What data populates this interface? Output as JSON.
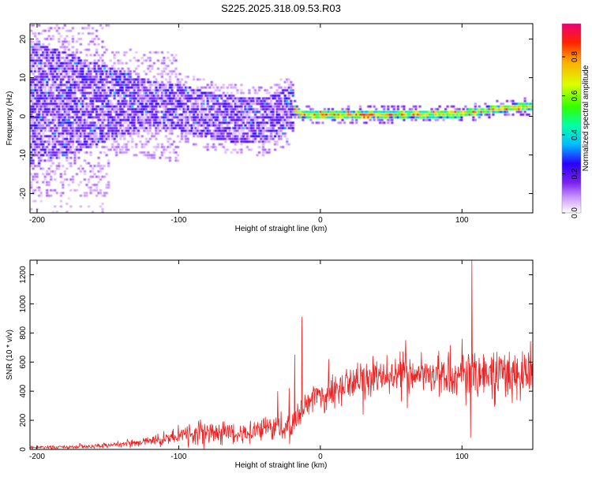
{
  "figure": {
    "title": "S225.2025.318.09.53.R03"
  },
  "chart_data": [
    {
      "type": "heatmap",
      "title": "S225.2025.318.09.53.R03",
      "xlabel": "Height of straight line (km)",
      "ylabel": "Frequency (Hz)",
      "xlim": [
        -205,
        150
      ],
      "ylim": [
        -25,
        24
      ],
      "xticks": [
        -200,
        -100,
        0,
        100
      ],
      "yticks": [
        -20,
        -10,
        0,
        10,
        20
      ],
      "colorbar": {
        "label": "Normalized spectral amplitude",
        "range": [
          0.0,
          0.97
        ],
        "ticks": [
          0.0,
          0.2,
          0.4,
          0.6,
          0.8
        ],
        "colormap": [
          "#ffffff",
          "#cc99ff",
          "#7a22ee",
          "#2a00ff",
          "#00bbff",
          "#00ffaa",
          "#33ff00",
          "#ddff00",
          "#ffaa00",
          "#ff2200",
          "#ee0077"
        ]
      },
      "ridge": [
        {
          "x": -150,
          "y": 3
        },
        {
          "x": -125,
          "y": 3
        },
        {
          "x": -100,
          "y": 2
        },
        {
          "x": -80,
          "y": 0
        },
        {
          "x": -60,
          "y": -1
        },
        {
          "x": -40,
          "y": -1.5
        },
        {
          "x": -25,
          "y": 1
        },
        {
          "x": -20,
          "y": 2
        },
        {
          "x": -15,
          "y": 0.5
        },
        {
          "x": 0,
          "y": 0
        },
        {
          "x": 50,
          "y": 0.3
        },
        {
          "x": 100,
          "y": 0.5
        },
        {
          "x": 120,
          "y": 1.5
        },
        {
          "x": 150,
          "y": 2.5
        }
      ]
    },
    {
      "type": "line",
      "xlabel": "Height of straight line (km)",
      "ylabel": "SNR (10 * v/v)",
      "xlim": [
        -205,
        150
      ],
      "ylim": [
        0,
        1300
      ],
      "xticks": [
        -200,
        -100,
        0,
        100
      ],
      "yticks": [
        0,
        200,
        400,
        600,
        800,
        1000,
        1200
      ],
      "color": "#ee2222",
      "envelope": {
        "x": [
          -205,
          -180,
          -160,
          -140,
          -120,
          -110,
          -100,
          -90,
          -80,
          -70,
          -60,
          -50,
          -40,
          -30,
          -20,
          -15,
          -10,
          -5,
          0,
          10,
          20,
          40,
          60,
          80,
          100,
          120,
          140,
          150
        ],
        "mean": [
          12,
          15,
          22,
          35,
          55,
          70,
          95,
          110,
          120,
          115,
          110,
          120,
          140,
          150,
          160,
          250,
          320,
          350,
          370,
          420,
          460,
          500,
          510,
          505,
          510,
          520,
          530,
          530
        ],
        "spread": [
          10,
          12,
          15,
          20,
          30,
          40,
          60,
          70,
          80,
          70,
          60,
          70,
          80,
          90,
          100,
          90,
          90,
          90,
          100,
          110,
          120,
          130,
          140,
          150,
          160,
          160,
          150,
          150
        ]
      },
      "spikes": [
        {
          "x": -30,
          "y": 400
        },
        {
          "x": -22,
          "y": 420
        },
        {
          "x": -18,
          "y": 650
        },
        {
          "x": -13,
          "y": 910
        },
        {
          "x": 6,
          "y": 620
        },
        {
          "x": 100,
          "y": 760
        },
        {
          "x": 107,
          "y": 1300
        },
        {
          "x": 106,
          "y": 80
        }
      ]
    }
  ]
}
